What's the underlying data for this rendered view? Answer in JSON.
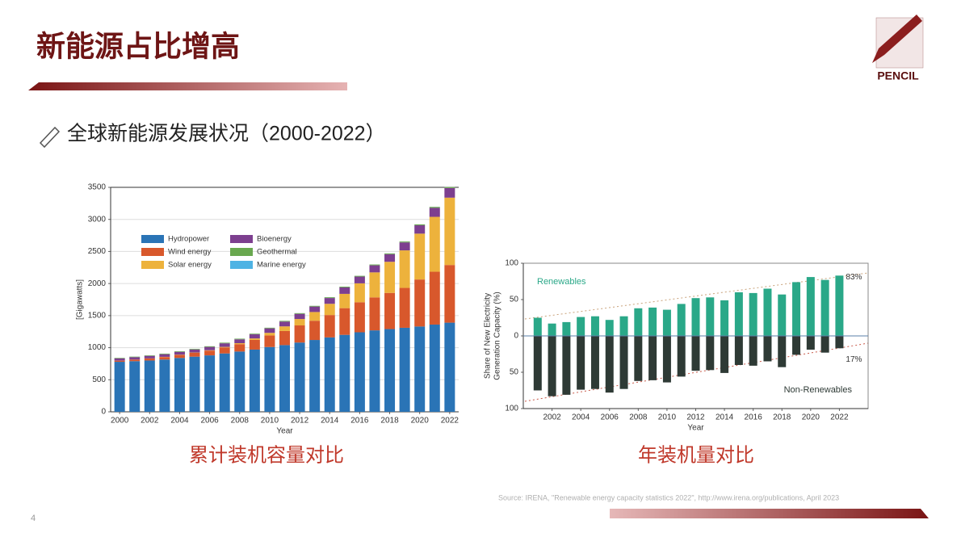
{
  "slide": {
    "title": "新能源占比增高",
    "subtitle": "全球新能源发展状况（2000-2022）",
    "logo": "PENCIL",
    "page_number": "4",
    "source": "Source: IRENA, \"Renewable energy capacity statistics 2022\", http://www.irena.org/publications, April 2023"
  },
  "chart_data": [
    {
      "type": "bar",
      "stacked": true,
      "caption": "累计装机容量对比",
      "xlabel": "Year",
      "ylabel": "[Gigawatts]",
      "x": [
        2000,
        2001,
        2002,
        2003,
        2004,
        2005,
        2006,
        2007,
        2008,
        2009,
        2010,
        2011,
        2012,
        2013,
        2014,
        2015,
        2016,
        2017,
        2018,
        2019,
        2020,
        2021,
        2022
      ],
      "xlim": [
        1999.4,
        2022.6
      ],
      "xticks": [
        2000,
        2002,
        2004,
        2006,
        2008,
        2010,
        2012,
        2014,
        2016,
        2018,
        2020,
        2022
      ],
      "ylim": [
        0,
        3500
      ],
      "yticks": [
        0,
        500,
        1000,
        1500,
        2000,
        2500,
        3000,
        3500
      ],
      "grid": true,
      "legend": "upper left",
      "series": [
        {
          "name": "Hydropower",
          "color": "#2a74b6",
          "values": [
            780,
            790,
            800,
            815,
            840,
            860,
            880,
            910,
            940,
            970,
            1010,
            1040,
            1080,
            1120,
            1160,
            1200,
            1240,
            1270,
            1290,
            1310,
            1330,
            1360,
            1390
          ]
        },
        {
          "name": "Wind energy",
          "color": "#d8582c",
          "values": [
            17,
            24,
            31,
            39,
            47,
            59,
            74,
            94,
            115,
            151,
            181,
            220,
            267,
            300,
            349,
            416,
            468,
            514,
            564,
            622,
            733,
            824,
            899
          ]
        },
        {
          "name": "Solar energy",
          "color": "#edb23c",
          "values": [
            1,
            1,
            2,
            3,
            4,
            5,
            6,
            8,
            15,
            23,
            40,
            72,
            100,
            136,
            175,
            223,
            295,
            390,
            485,
            585,
            715,
            856,
            1050
          ]
        },
        {
          "name": "Bioenergy",
          "color": "#7d3f8f",
          "values": [
            35,
            37,
            39,
            41,
            44,
            48,
            52,
            56,
            60,
            64,
            70,
            75,
            80,
            85,
            90,
            100,
            105,
            110,
            118,
            124,
            130,
            140,
            150
          ]
        },
        {
          "name": "Geothermal",
          "color": "#69a84f",
          "values": [
            8,
            8,
            8,
            9,
            9,
            9,
            10,
            10,
            10,
            10,
            10,
            11,
            11,
            11,
            12,
            12,
            12,
            13,
            13,
            14,
            14,
            15,
            15
          ]
        },
        {
          "name": "Marine energy",
          "color": "#4eb3e4",
          "values": [
            0.3,
            0.3,
            0.3,
            0.3,
            0.3,
            0.3,
            0.3,
            0.3,
            0.3,
            0.3,
            0.3,
            0.5,
            0.5,
            0.5,
            0.5,
            0.5,
            0.5,
            0.5,
            0.5,
            0.5,
            0.5,
            0.5,
            0.5
          ]
        }
      ]
    },
    {
      "type": "bar",
      "stacked": false,
      "caption": "年装机量对比",
      "xlabel": "Year",
      "ylabel": [
        "Share of New Electricity",
        "Generation Capacity (%)"
      ],
      "x": [
        2001,
        2002,
        2003,
        2004,
        2005,
        2006,
        2007,
        2008,
        2009,
        2010,
        2011,
        2012,
        2013,
        2014,
        2015,
        2016,
        2017,
        2018,
        2019,
        2020,
        2021,
        2022
      ],
      "xlim": [
        2000,
        2024
      ],
      "xticks": [
        2002,
        2004,
        2006,
        2008,
        2010,
        2012,
        2014,
        2016,
        2018,
        2020,
        2022
      ],
      "ylim": [
        -100,
        100
      ],
      "yticks": [
        {
          "value": -100,
          "label": "100"
        },
        {
          "value": -50,
          "label": "50"
        },
        0,
        50,
        100
      ],
      "grid": false,
      "series": [
        {
          "name": "Renewables",
          "color": "#2aa888",
          "values": [
            25,
            17,
            19,
            26,
            27,
            22,
            27,
            38,
            39,
            36,
            44,
            52,
            53,
            49,
            60,
            59,
            65,
            57,
            74,
            81,
            77,
            83
          ],
          "value_labels": [
            null,
            null,
            null,
            null,
            null,
            null,
            null,
            null,
            null,
            null,
            null,
            null,
            null,
            null,
            null,
            null,
            null,
            null,
            null,
            null,
            null,
            "83%"
          ]
        },
        {
          "name": "Non-Renewables",
          "color": "#2e3a35",
          "values": [
            -75,
            -83,
            -81,
            -74,
            -73,
            -78,
            -73,
            -62,
            -61,
            -64,
            -56,
            -48,
            -47,
            -51,
            -40,
            -41,
            -35,
            -43,
            -26,
            -19,
            -23,
            -17
          ],
          "value_labels": [
            null,
            null,
            null,
            null,
            null,
            null,
            null,
            null,
            null,
            null,
            null,
            null,
            null,
            null,
            null,
            null,
            null,
            null,
            null,
            null,
            null,
            "17%"
          ]
        }
      ]
    }
  ]
}
